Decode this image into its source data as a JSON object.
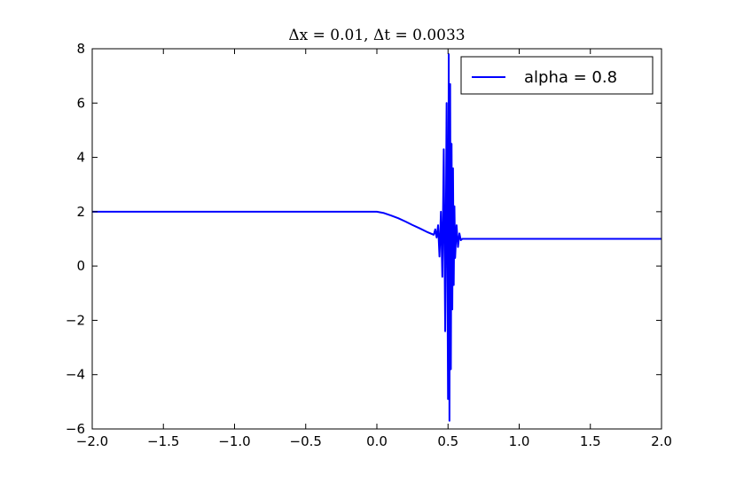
{
  "chart_data": {
    "type": "line",
    "title": "Δx = 0.01, Δt = 0.0033",
    "xlabel": "",
    "ylabel": "",
    "xlim": [
      -2.0,
      2.0
    ],
    "ylim": [
      -6,
      8
    ],
    "grid": false,
    "legend_position": "top-right",
    "x_ticks": [
      "−2.0",
      "−1.5",
      "−1.0",
      "−0.5",
      "0.0",
      "0.5",
      "1.0",
      "1.5",
      "2.0"
    ],
    "x_tick_values": [
      -2.0,
      -1.5,
      -1.0,
      -0.5,
      0.0,
      0.5,
      1.0,
      1.5,
      2.0
    ],
    "y_ticks": [
      "−6",
      "−4",
      "−2",
      "0",
      "2",
      "4",
      "6",
      "8"
    ],
    "y_tick_values": [
      -6,
      -4,
      -2,
      0,
      2,
      4,
      6,
      8
    ],
    "series": [
      {
        "name": "alpha = 0.8",
        "color": "#0000ff",
        "x": [
          -2.0,
          -1.0,
          0.0,
          0.05,
          0.1,
          0.15,
          0.2,
          0.25,
          0.3,
          0.35,
          0.4,
          0.41,
          0.42,
          0.43,
          0.44,
          0.45,
          0.46,
          0.47,
          0.48,
          0.49,
          0.5,
          0.505,
          0.51,
          0.515,
          0.52,
          0.525,
          0.53,
          0.535,
          0.54,
          0.545,
          0.55,
          0.56,
          0.57,
          0.58,
          0.59,
          0.6,
          1.0,
          2.0
        ],
        "y": [
          2.0,
          2.0,
          2.0,
          1.95,
          1.86,
          1.76,
          1.64,
          1.51,
          1.39,
          1.26,
          1.15,
          1.35,
          1.05,
          1.5,
          0.35,
          2.0,
          -0.4,
          4.3,
          -2.4,
          6.0,
          -4.9,
          7.8,
          -5.7,
          6.7,
          -3.8,
          4.5,
          -1.6,
          3.6,
          -0.7,
          2.2,
          0.3,
          1.5,
          0.7,
          1.2,
          0.95,
          1.0,
          1.0,
          1.0
        ]
      }
    ]
  }
}
